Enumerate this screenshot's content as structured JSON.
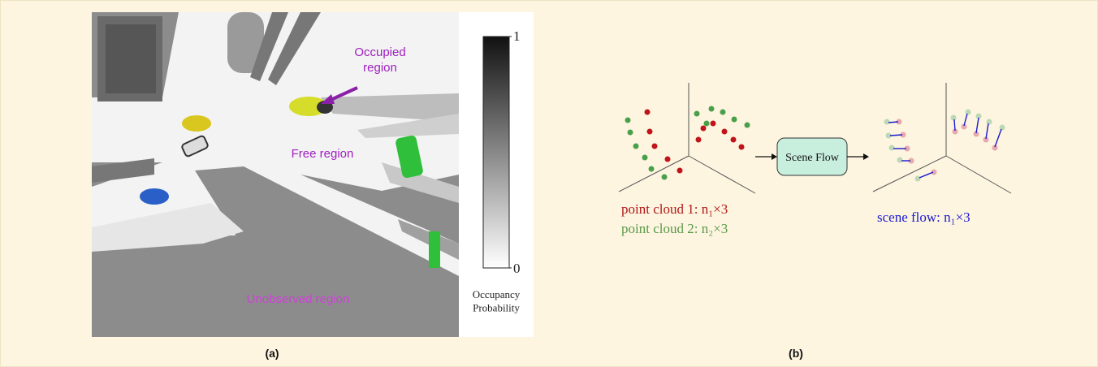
{
  "panel_a": {
    "labels": {
      "occupied": "Occupied\nregion",
      "free": "Free region",
      "unobserved": "Unobserved region"
    },
    "colorbar": {
      "top": "1",
      "bottom": "0",
      "title": "Occupancy\nProbability"
    },
    "caption": "(a)"
  },
  "panel_b": {
    "box": "Scene Flow",
    "legend": {
      "cloud1": "point cloud 1: n₁×3",
      "cloud2": "point cloud 2: n₂×3",
      "flow": "scene flow: n₁×3"
    },
    "caption": "(b)"
  }
}
